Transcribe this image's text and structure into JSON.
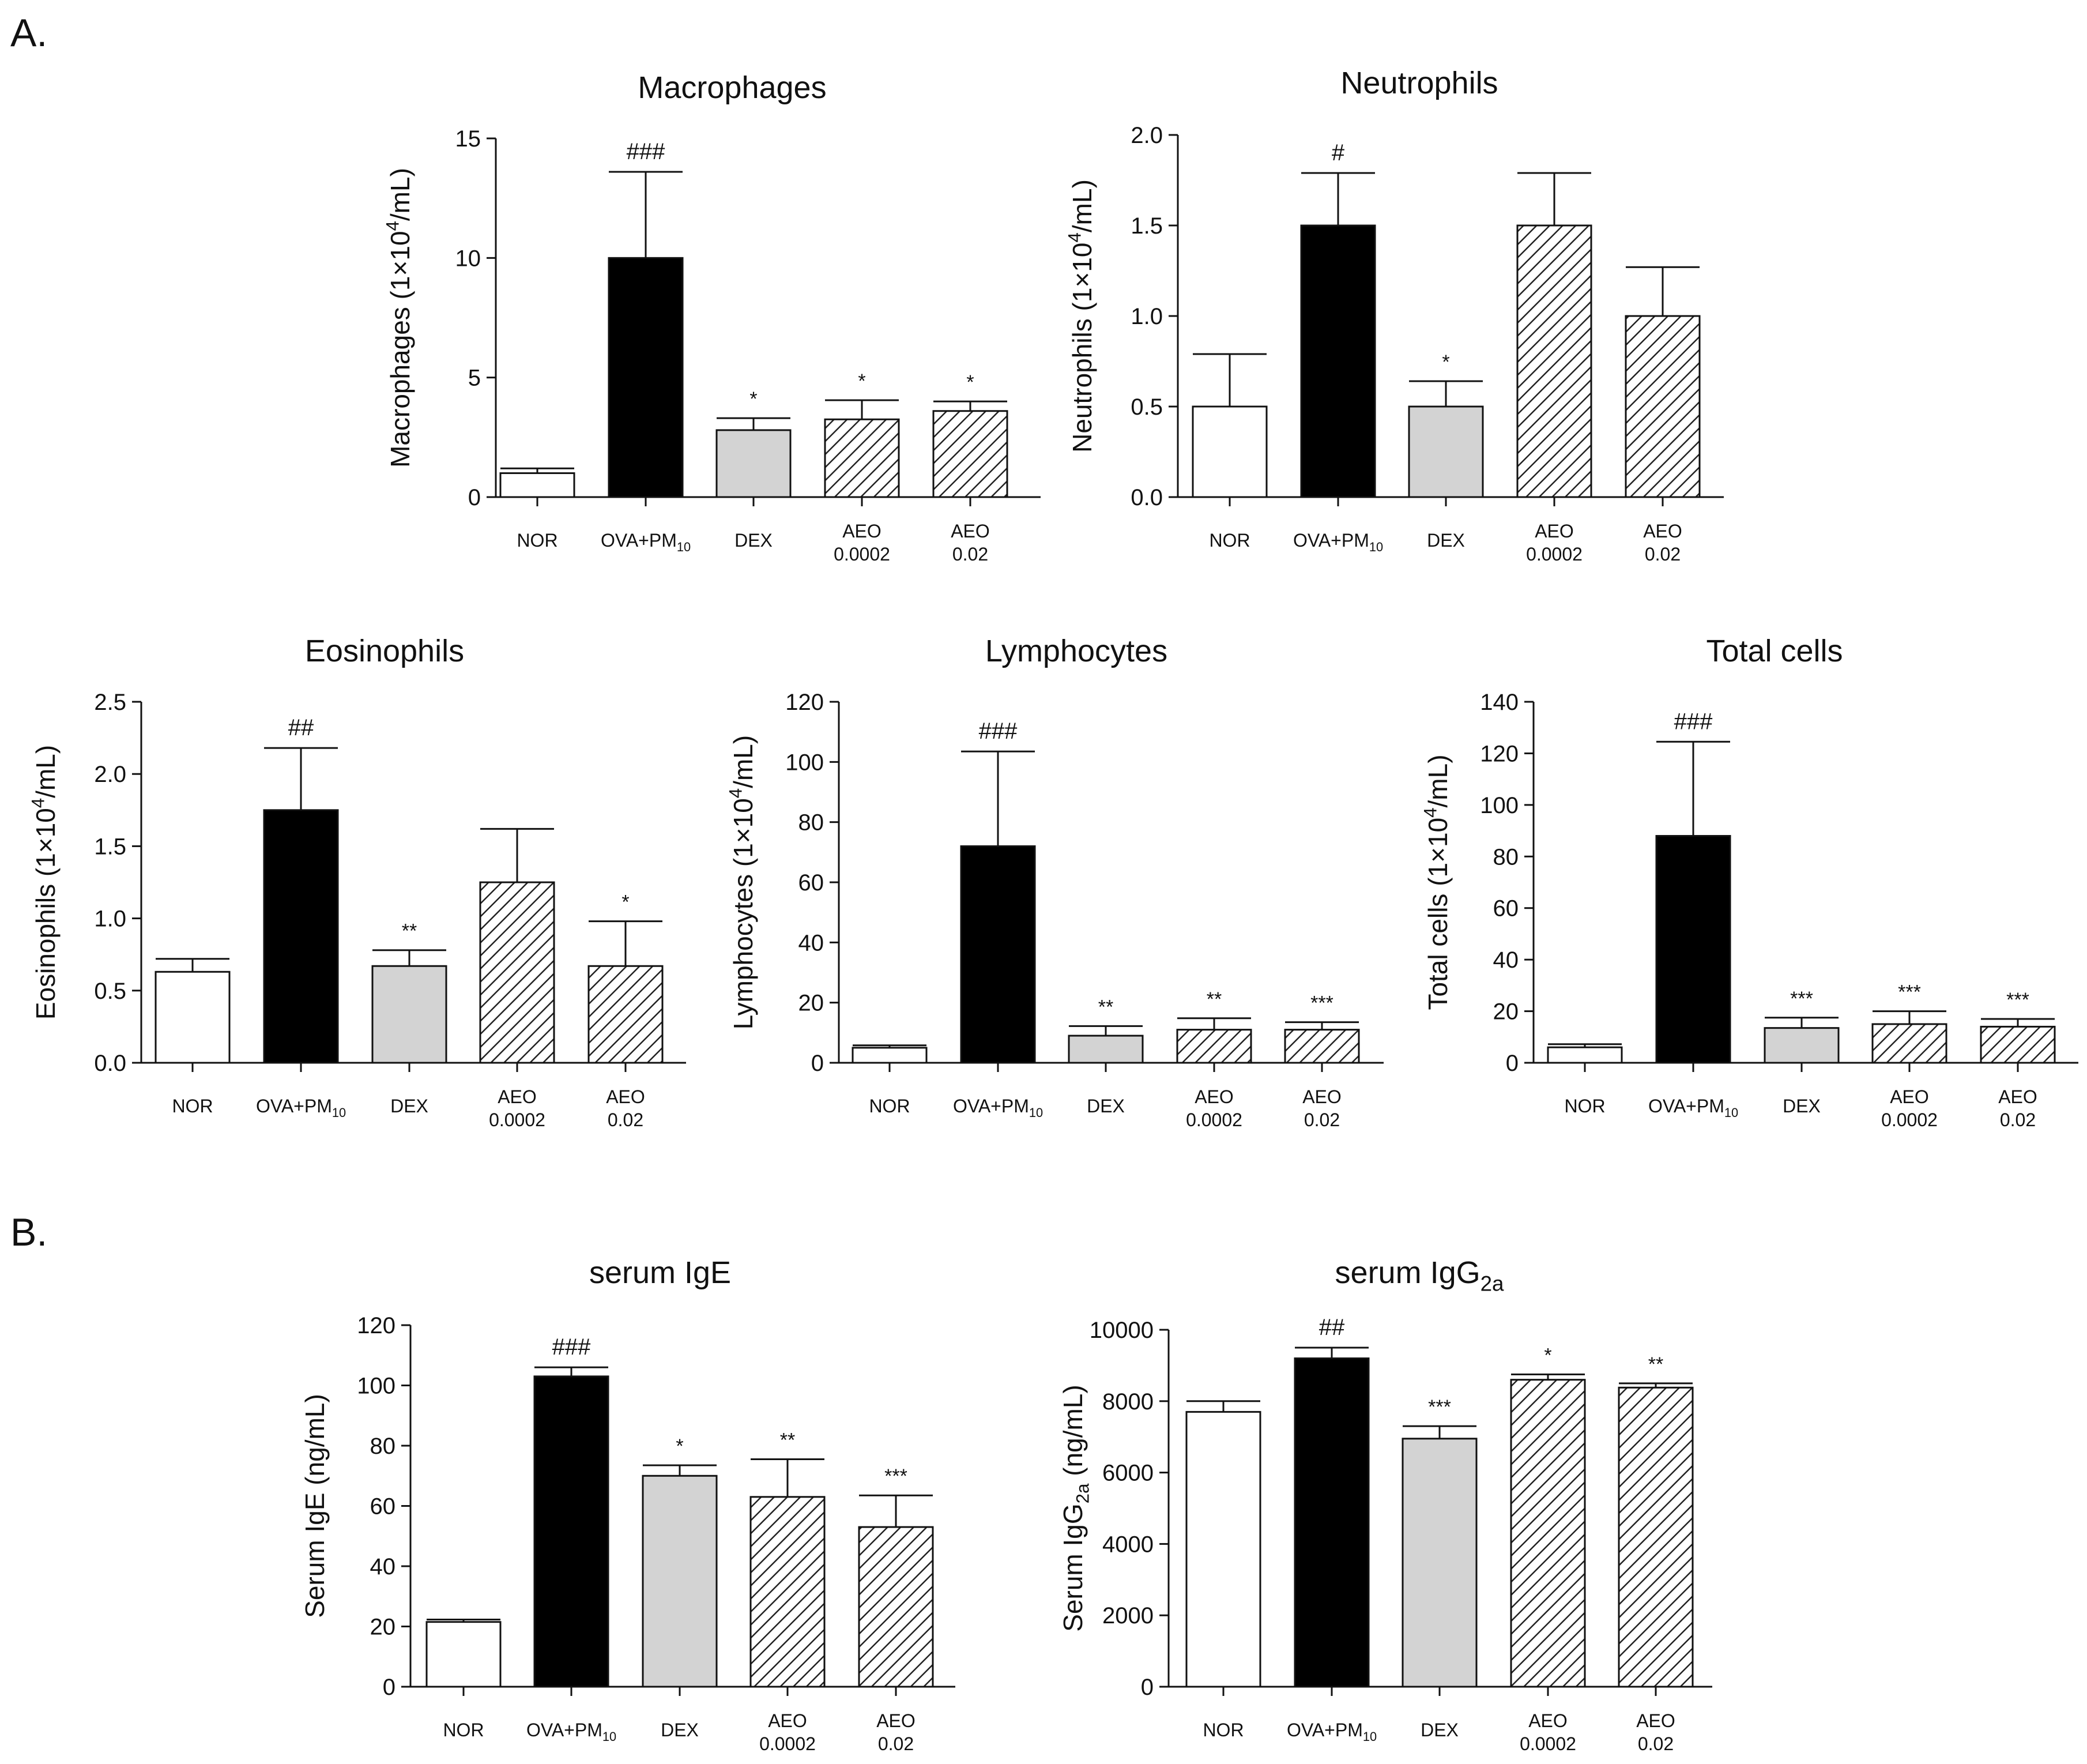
{
  "panels": {
    "a": "A.",
    "b": "B."
  },
  "colors": {
    "nor": "#ffffff",
    "ova": "#000000",
    "dex": "#d3d3d3",
    "aeo_fill": "#ffffff",
    "hatch": "#222222",
    "axis": "#111111"
  },
  "chart_data": [
    {
      "id": "macrophages",
      "type": "bar",
      "title": "Macrophages",
      "ylabel": "Macrophages (1×10<sup>4</sup>/mL)",
      "categories": [
        "NOR",
        "OVA+PM<sub>10</sub>",
        "DEX",
        "AEO<br>0.0002",
        "AEO<br>0.02"
      ],
      "values": [
        1.0,
        10.0,
        2.8,
        3.25,
        3.6
      ],
      "errors": [
        0.2,
        3.6,
        0.5,
        0.8,
        0.4
      ],
      "annotations": [
        "",
        "###",
        "*",
        "*",
        "*"
      ],
      "ylim": [
        0,
        15
      ],
      "yticks": [
        0,
        5,
        10,
        15
      ],
      "ytick_labels": [
        "0",
        "5",
        "10",
        "15"
      ]
    },
    {
      "id": "neutrophils",
      "type": "bar",
      "title": "Neutrophils",
      "ylabel": "Neutrophils (1×10<sup>4</sup>/mL)",
      "categories": [
        "NOR",
        "OVA+PM<sub>10</sub>",
        "DEX",
        "AEO<br>0.0002",
        "AEO<br>0.02"
      ],
      "values": [
        0.5,
        1.5,
        0.5,
        1.5,
        1.0
      ],
      "errors": [
        0.29,
        0.29,
        0.14,
        0.29,
        0.27
      ],
      "annotations": [
        "",
        "#",
        "*",
        "",
        ""
      ],
      "ylim": [
        0,
        2.0
      ],
      "yticks": [
        0,
        0.5,
        1.0,
        1.5,
        2.0
      ],
      "ytick_labels": [
        "0.0",
        "0.5",
        "1.0",
        "1.5",
        "2.0"
      ]
    },
    {
      "id": "eosinophils",
      "type": "bar",
      "title": "Eosinophils",
      "ylabel": "Eosinophils (1×10<sup>4</sup>/mL)",
      "categories": [
        "NOR",
        "OVA+PM<sub>10</sub>",
        "DEX",
        "AEO<br>0.0002",
        "AEO<br>0.02"
      ],
      "values": [
        0.63,
        1.75,
        0.67,
        1.25,
        0.67
      ],
      "errors": [
        0.09,
        0.43,
        0.11,
        0.37,
        0.31
      ],
      "annotations": [
        "",
        "##",
        "**",
        "",
        "*"
      ],
      "ylim": [
        0,
        2.5
      ],
      "yticks": [
        0,
        0.5,
        1.0,
        1.5,
        2.0,
        2.5
      ],
      "ytick_labels": [
        "0.0",
        "0.5",
        "1.0",
        "1.5",
        "2.0",
        "2.5"
      ]
    },
    {
      "id": "lymphocytes",
      "type": "bar",
      "title": "Lymphocytes",
      "ylabel": "Lymphocytes (1×10<sup>4</sup>/mL)",
      "categories": [
        "NOR",
        "OVA+PM<sub>10</sub>",
        "DEX",
        "AEO<br>0.0002",
        "AEO<br>0.02"
      ],
      "values": [
        5,
        72,
        9,
        11,
        11
      ],
      "errors": [
        0.8,
        31.5,
        3.2,
        3.8,
        2.5
      ],
      "annotations": [
        "",
        "###",
        "**",
        "**",
        "***"
      ],
      "ylim": [
        0,
        120
      ],
      "yticks": [
        0,
        20,
        40,
        60,
        80,
        100,
        120
      ],
      "ytick_labels": [
        "0",
        "20",
        "40",
        "60",
        "80",
        "100",
        "120"
      ]
    },
    {
      "id": "total-cells",
      "type": "bar",
      "title": "Total cells",
      "ylabel": "Total cells (1×10<sup>4</sup>/mL)",
      "categories": [
        "NOR",
        "OVA+PM<sub>10</sub>",
        "DEX",
        "AEO<br>0.0002",
        "AEO<br>0.02"
      ],
      "values": [
        6,
        88,
        13.5,
        15,
        14
      ],
      "errors": [
        1.2,
        36.5,
        4.0,
        5.0,
        3.0
      ],
      "annotations": [
        "",
        "###",
        "***",
        "***",
        "***"
      ],
      "ylim": [
        0,
        140
      ],
      "yticks": [
        0,
        20,
        40,
        60,
        80,
        100,
        120,
        140
      ],
      "ytick_labels": [
        "0",
        "20",
        "40",
        "60",
        "80",
        "100",
        "120",
        "140"
      ]
    },
    {
      "id": "serum-ige",
      "type": "bar",
      "title": "serum IgE",
      "ylabel": "Serum IgE (ng/mL)",
      "categories": [
        "NOR",
        "OVA+PM<sub>10</sub>",
        "DEX",
        "AEO<br>0.0002",
        "AEO<br>0.02"
      ],
      "values": [
        21.5,
        103,
        70,
        63,
        53
      ],
      "errors": [
        0.8,
        3.0,
        3.5,
        12.5,
        10.5
      ],
      "annotations": [
        "",
        "###",
        "*",
        "**",
        "***"
      ],
      "ylim": [
        0,
        120
      ],
      "yticks": [
        0,
        20,
        40,
        60,
        80,
        100,
        120
      ],
      "ytick_labels": [
        "0",
        "20",
        "40",
        "60",
        "80",
        "100",
        "120"
      ]
    },
    {
      "id": "serum-igg2a",
      "type": "bar",
      "title": "serum IgG<sub>2a</sub>",
      "ylabel": "Serum IgG<sub>2a</sub> (ng/mL)",
      "categories": [
        "NOR",
        "OVA+PM<sub>10</sub>",
        "DEX",
        "AEO<br>0.0002",
        "AEO<br>0.02"
      ],
      "values": [
        7700,
        9200,
        6950,
        8600,
        8380
      ],
      "errors": [
        300,
        300,
        350,
        150,
        120
      ],
      "annotations": [
        "",
        "##",
        "***",
        "*",
        "**"
      ],
      "ylim": [
        0,
        10000
      ],
      "yticks": [
        0,
        2000,
        4000,
        6000,
        8000,
        10000
      ],
      "ytick_labels": [
        "0",
        "2000",
        "4000",
        "6000",
        "8000",
        "10000"
      ]
    }
  ]
}
